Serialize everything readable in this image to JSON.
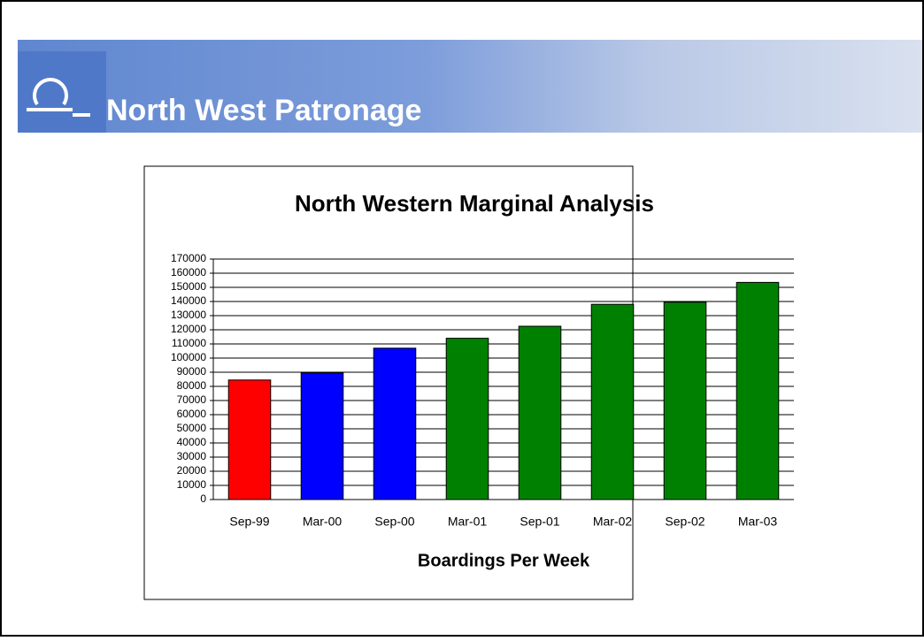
{
  "slide": {
    "title": "North West Patronage"
  },
  "chart_data": {
    "type": "bar",
    "title": "North Western Marginal Analysis",
    "x_label": "Boardings Per Week",
    "categories": [
      "Sep-99",
      "Mar-00",
      "Sep-00",
      "Mar-01",
      "Sep-01",
      "Mar-02",
      "Sep-02",
      "Mar-03"
    ],
    "values": [
      84500,
      89500,
      107000,
      114000,
      122500,
      138000,
      139500,
      153500
    ],
    "colors": [
      "#ff0000",
      "#0000ff",
      "#0000ff",
      "#008000",
      "#008000",
      "#008000",
      "#008000",
      "#008000"
    ],
    "ylim": [
      0,
      170000
    ],
    "yticks": [
      0,
      10000,
      20000,
      30000,
      40000,
      50000,
      60000,
      70000,
      80000,
      90000,
      100000,
      110000,
      120000,
      130000,
      140000,
      150000,
      160000,
      170000
    ],
    "grid": true
  }
}
